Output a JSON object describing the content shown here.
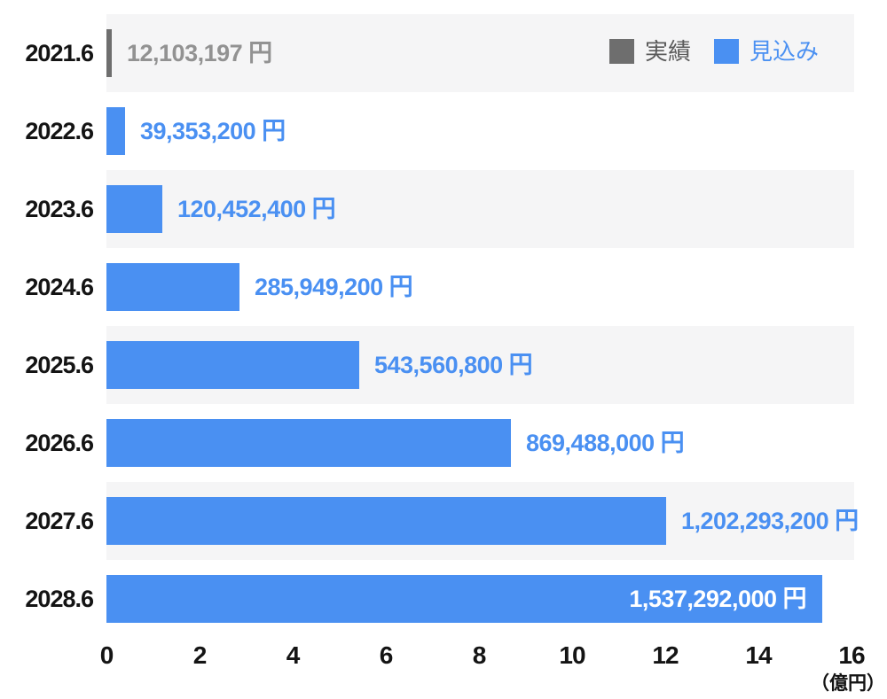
{
  "colors": {
    "actual_bar": "#6e6e6e",
    "forecast_bar": "#4a90f2",
    "actual_value_text": "#929292",
    "forecast_value_text": "#4a90f2",
    "inside_value_text": "#ffffff",
    "row_band": "#f5f5f6",
    "axis_text": "#141414"
  },
  "chart_data": {
    "type": "bar",
    "orientation": "horizontal",
    "title": "",
    "categories": [
      "2021.6",
      "2022.6",
      "2023.6",
      "2024.6",
      "2025.6",
      "2026.6",
      "2027.6",
      "2028.6"
    ],
    "values_yen": [
      12103197,
      39353200,
      120452400,
      285949200,
      543560800,
      869488000,
      1202293200,
      1537292000
    ],
    "values_oku": [
      0.121,
      0.394,
      1.205,
      2.859,
      5.436,
      8.695,
      12.023,
      15.373
    ],
    "data_labels": [
      "12,103,197 円",
      "39,353,200 円",
      "120,452,400 円",
      "285,949,200 円",
      "543,560,800 円",
      "869,488,000 円",
      "1,202,293,200 円",
      "1,537,292,000 円"
    ],
    "series_per_bar": [
      "実績",
      "見込み",
      "見込み",
      "見込み",
      "見込み",
      "見込み",
      "見込み",
      "見込み"
    ],
    "label_placement": [
      "outside",
      "outside",
      "outside",
      "outside",
      "outside",
      "outside",
      "outside",
      "inside"
    ],
    "legend": {
      "position": "top-right",
      "entries": [
        {
          "label": "実績",
          "color": "#6e6e6e"
        },
        {
          "label": "見込み",
          "color": "#4a90f2"
        }
      ]
    },
    "x_ticks": [
      "0",
      "2",
      "4",
      "6",
      "8",
      "10",
      "12",
      "14",
      "16"
    ],
    "xlim": [
      0,
      16
    ],
    "x_unit": "（億円）",
    "grid": "alternating-row-bands",
    "row_bands_shaded": [
      0,
      2,
      4,
      6
    ]
  }
}
